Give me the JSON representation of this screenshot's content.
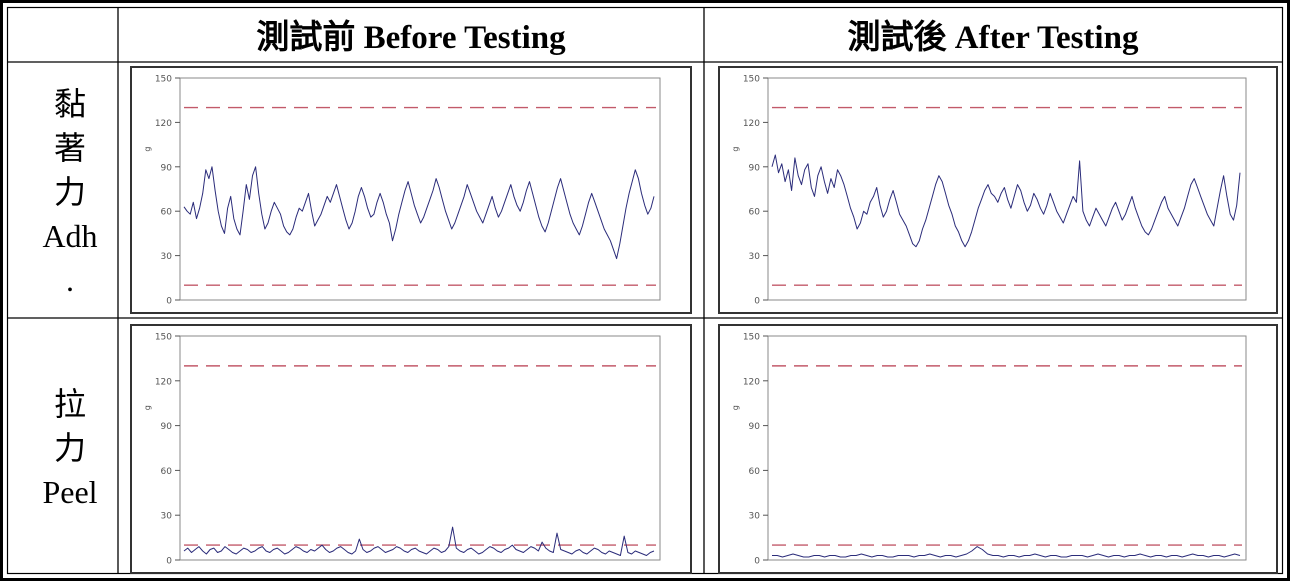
{
  "header": {
    "col_before": "測試前  Before Testing",
    "col_after": "測試後  After Testing"
  },
  "rows": [
    {
      "label_lines": [
        "黏",
        "著",
        "力",
        "Adh",
        "."
      ]
    },
    {
      "label_lines": [
        "拉",
        "力",
        "Peel"
      ]
    }
  ],
  "colors": {
    "series": "#2b2c7a",
    "limit_line": "#c25a6a",
    "frame": "#333333"
  },
  "chart_data": [
    {
      "type": "line",
      "row": "Adh",
      "column": "Before Testing",
      "yticks": [
        0,
        30,
        60,
        90,
        120,
        150
      ],
      "ylim": [
        0,
        150
      ],
      "ylabel": "g",
      "upper_limit": 130,
      "lower_limit": 10,
      "y": [
        63,
        60,
        58,
        66,
        55,
        62,
        72,
        88,
        82,
        90,
        74,
        60,
        50,
        45,
        62,
        70,
        55,
        48,
        44,
        60,
        78,
        68,
        84,
        90,
        72,
        58,
        48,
        52,
        60,
        66,
        62,
        58,
        50,
        46,
        44,
        48,
        56,
        62,
        60,
        66,
        72,
        60,
        50,
        54,
        58,
        64,
        70,
        66,
        72,
        78,
        70,
        62,
        54,
        48,
        52,
        60,
        70,
        76,
        70,
        62,
        56,
        58,
        66,
        72,
        66,
        58,
        52,
        40,
        48,
        58,
        66,
        74,
        80,
        72,
        64,
        58,
        52,
        56,
        62,
        68,
        74,
        82,
        76,
        68,
        60,
        54,
        48,
        52,
        58,
        64,
        70,
        78,
        72,
        66,
        60,
        56,
        52,
        58,
        64,
        70,
        62,
        56,
        60,
        66,
        72,
        78,
        70,
        64,
        60,
        66,
        74,
        80,
        72,
        64,
        56,
        50,
        46,
        52,
        60,
        68,
        76,
        82,
        74,
        66,
        58,
        52,
        48,
        44,
        50,
        58,
        66,
        72,
        66,
        60,
        54,
        48,
        44,
        40,
        34,
        28,
        38,
        50,
        62,
        72,
        80,
        88,
        82,
        72,
        64,
        58,
        62,
        70
      ]
    },
    {
      "type": "line",
      "row": "Adh",
      "column": "After Testing",
      "yticks": [
        0,
        30,
        60,
        90,
        120,
        150
      ],
      "ylim": [
        0,
        150
      ],
      "ylabel": "g",
      "upper_limit": 130,
      "lower_limit": 10,
      "y": [
        90,
        98,
        86,
        92,
        80,
        88,
        74,
        96,
        84,
        78,
        88,
        92,
        76,
        70,
        84,
        90,
        80,
        72,
        82,
        76,
        88,
        84,
        78,
        70,
        62,
        56,
        48,
        52,
        60,
        58,
        66,
        70,
        76,
        64,
        56,
        60,
        68,
        74,
        66,
        58,
        54,
        50,
        44,
        38,
        36,
        40,
        48,
        54,
        62,
        70,
        78,
        84,
        80,
        72,
        64,
        58,
        50,
        46,
        40,
        36,
        40,
        46,
        54,
        62,
        68,
        74,
        78,
        72,
        70,
        66,
        72,
        76,
        68,
        62,
        70,
        78,
        74,
        66,
        60,
        64,
        72,
        68,
        62,
        58,
        64,
        72,
        66,
        60,
        56,
        52,
        58,
        64,
        70,
        66,
        94,
        60,
        54,
        50,
        56,
        62,
        58,
        54,
        50,
        56,
        62,
        66,
        60,
        54,
        58,
        64,
        70,
        62,
        56,
        50,
        46,
        44,
        48,
        54,
        60,
        66,
        70,
        62,
        58,
        54,
        50,
        56,
        62,
        70,
        78,
        82,
        76,
        70,
        64,
        58,
        54,
        50,
        62,
        74,
        84,
        70,
        58,
        54,
        64,
        86
      ]
    },
    {
      "type": "line",
      "row": "Peel",
      "column": "Before Testing",
      "yticks": [
        0,
        30,
        60,
        90,
        120,
        150
      ],
      "ylim": [
        0,
        150
      ],
      "ylabel": "g",
      "upper_limit": 130,
      "lower_limit": 10,
      "y": [
        6,
        8,
        5,
        7,
        9,
        6,
        4,
        7,
        8,
        5,
        6,
        9,
        7,
        5,
        4,
        6,
        8,
        7,
        5,
        6,
        8,
        9,
        6,
        5,
        7,
        8,
        6,
        4,
        5,
        7,
        9,
        8,
        6,
        5,
        7,
        6,
        8,
        10,
        7,
        5,
        6,
        8,
        9,
        7,
        5,
        4,
        6,
        14,
        7,
        5,
        6,
        8,
        9,
        7,
        5,
        6,
        7,
        9,
        8,
        6,
        5,
        7,
        8,
        6,
        5,
        4,
        6,
        8,
        7,
        5,
        6,
        9,
        22,
        8,
        6,
        5,
        7,
        8,
        6,
        4,
        5,
        7,
        9,
        8,
        6,
        5,
        7,
        8,
        10,
        7,
        6,
        5,
        7,
        9,
        8,
        6,
        12,
        8,
        6,
        5,
        18,
        7,
        6,
        5,
        4,
        6,
        7,
        5,
        4,
        6,
        8,
        7,
        5,
        4,
        6,
        5,
        4,
        3,
        16,
        5,
        4,
        6,
        5,
        4,
        3,
        5,
        6
      ]
    },
    {
      "type": "line",
      "row": "Peel",
      "column": "After Testing",
      "yticks": [
        0,
        30,
        60,
        90,
        120,
        150
      ],
      "ylim": [
        0,
        150
      ],
      "ylabel": "g",
      "upper_limit": 130,
      "lower_limit": 10,
      "y": [
        3,
        3,
        2,
        3,
        4,
        3,
        2,
        2,
        3,
        3,
        2,
        3,
        3,
        2,
        2,
        3,
        3,
        4,
        3,
        2,
        3,
        3,
        2,
        2,
        3,
        3,
        3,
        2,
        3,
        3,
        4,
        3,
        2,
        3,
        3,
        2,
        3,
        4,
        6,
        9,
        7,
        4,
        3,
        3,
        2,
        3,
        3,
        2,
        3,
        3,
        4,
        3,
        2,
        3,
        3,
        2,
        2,
        3,
        3,
        3,
        2,
        3,
        4,
        3,
        2,
        3,
        3,
        2,
        3,
        3,
        4,
        3,
        2,
        3,
        3,
        2,
        3,
        3,
        2,
        3,
        4,
        3,
        3,
        2,
        3,
        3,
        2,
        3,
        4,
        3
      ]
    }
  ]
}
